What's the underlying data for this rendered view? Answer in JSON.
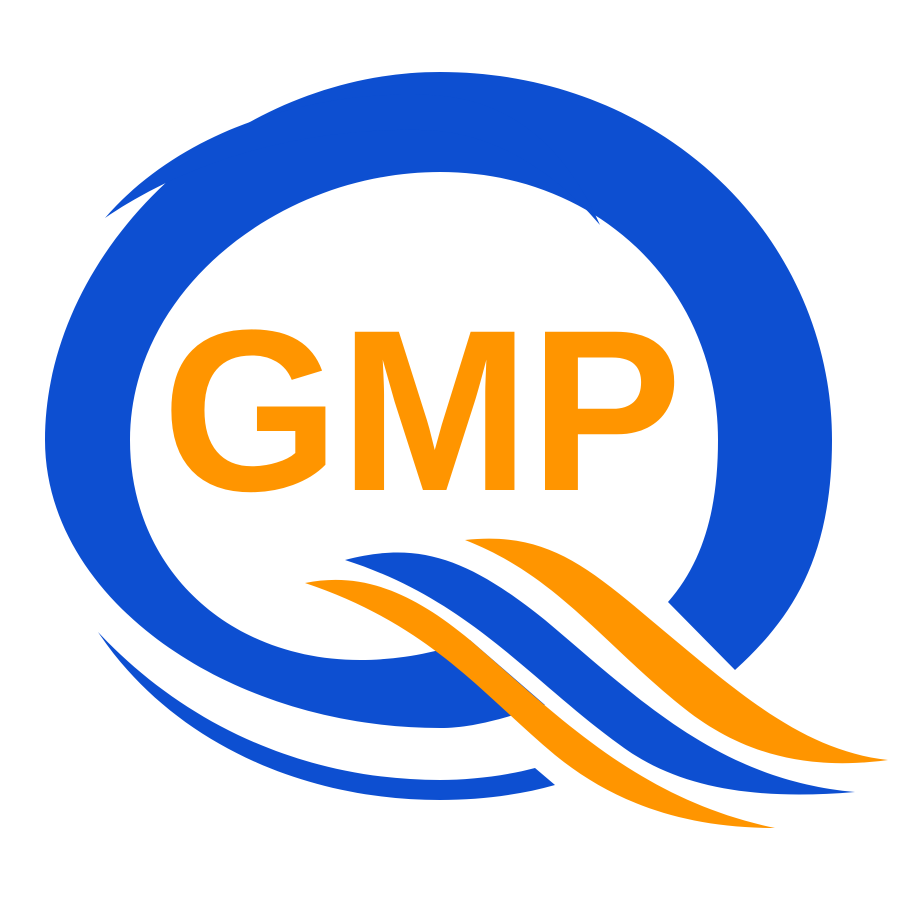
{
  "logo": {
    "text": "GMP",
    "colors": {
      "primary_blue": "#0d4fd1",
      "accent_orange": "#ff9500",
      "background": "#ffffff"
    },
    "icons": [
      "q-ring-icon",
      "q-tail-swoosh-icon"
    ]
  }
}
